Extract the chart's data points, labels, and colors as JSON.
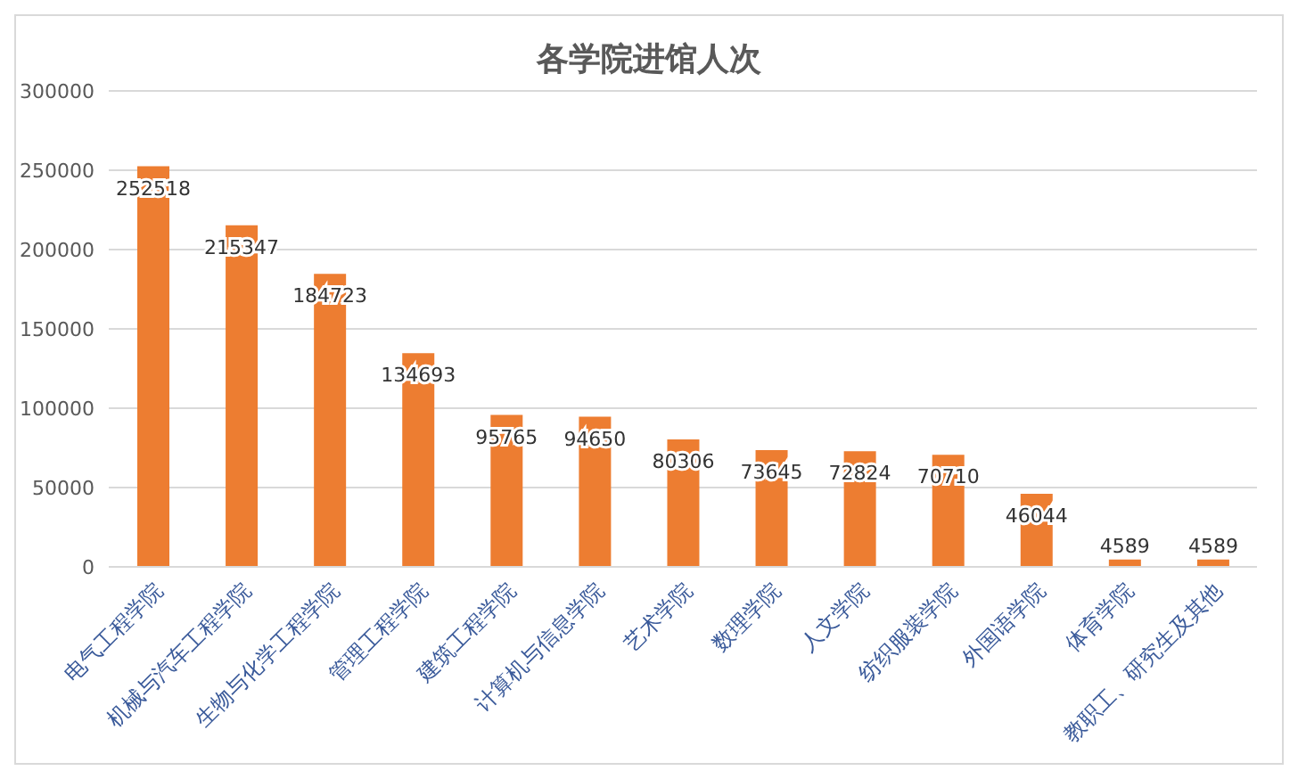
{
  "chart_data": {
    "type": "bar",
    "title": "各学院进馆人次",
    "categories": [
      "电气工程学院",
      "机械与汽车工程学院",
      "生物与化学工程学院",
      "管理工程学院",
      "建筑工程学院",
      "计算机与信息学院",
      "艺术学院",
      "数理学院",
      "人文学院",
      "纺织服装学院",
      "外国语学院",
      "体育学院",
      "教职工、研究生及其他"
    ],
    "values": [
      252518,
      215347,
      184723,
      134693,
      95765,
      94650,
      80306,
      73645,
      72824,
      70710,
      46044,
      4589,
      4589
    ],
    "color": "#ed7d31",
    "ylim": [
      0,
      300000
    ],
    "yticks": [
      0,
      50000,
      100000,
      150000,
      200000,
      250000,
      300000
    ],
    "grid": "y",
    "data_labels": true
  }
}
